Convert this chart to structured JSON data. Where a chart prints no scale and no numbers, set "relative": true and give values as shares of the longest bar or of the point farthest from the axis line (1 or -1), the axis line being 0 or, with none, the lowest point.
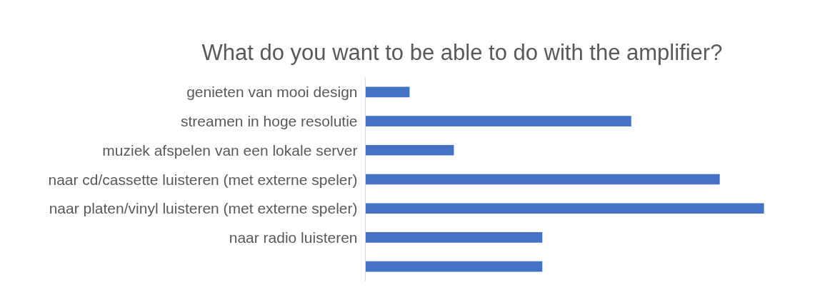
{
  "chart_data": {
    "type": "bar",
    "orientation": "horizontal",
    "relative": true,
    "title": "What do you want to be able to do with the amplifier?",
    "categories": [
      "genieten van mooi design",
      "streamen in hoge resolutie",
      "muziek afspelen van een lokale server",
      "naar cd/cassette luisteren (met externe speler)",
      "naar platen/vinyl luisteren (met externe speler)",
      "naar radio luisteren",
      null
    ],
    "values": [
      0.111,
      0.667,
      0.222,
      0.889,
      1,
      0.444,
      0.444
    ],
    "color": "#4472c4"
  }
}
